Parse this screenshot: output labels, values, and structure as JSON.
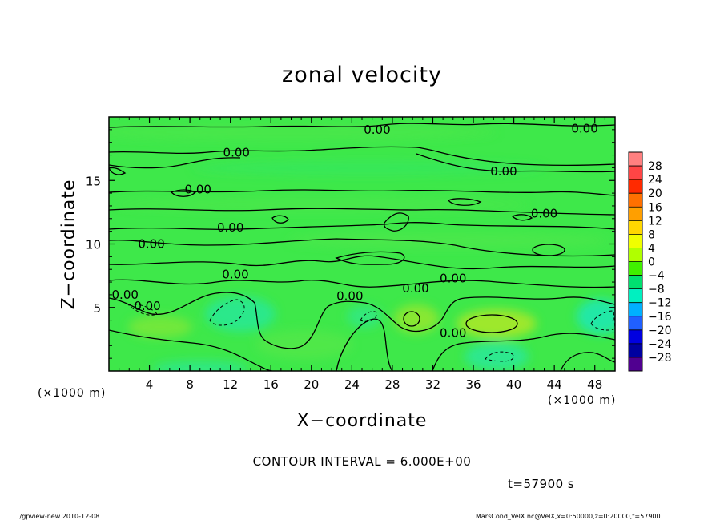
{
  "chart_data": {
    "type": "heatmap",
    "title": "zonal velocity",
    "xlabel": "X−coordinate",
    "ylabel": "Z−coordinate",
    "x_unit_label": "(×1000 m)",
    "xlim": [
      0,
      50
    ],
    "ylim": [
      0,
      20
    ],
    "x_ticks": [
      "4",
      "8",
      "12",
      "16",
      "20",
      "24",
      "28",
      "32",
      "36",
      "40",
      "44",
      "48"
    ],
    "x_tick_values": [
      4,
      8,
      12,
      16,
      20,
      24,
      28,
      32,
      36,
      40,
      44,
      48
    ],
    "y_ticks": [
      "5",
      "10",
      "15"
    ],
    "y_tick_values": [
      5,
      10,
      15
    ],
    "contour_labels": [
      {
        "text": "0.00",
        "x": 26.5,
        "z": 19.0
      },
      {
        "text": "0.00",
        "x": 47.0,
        "z": 19.1
      },
      {
        "text": "0.00",
        "x": 12.6,
        "z": 17.2
      },
      {
        "text": "0.00",
        "x": 39.0,
        "z": 15.7
      },
      {
        "text": "0.00",
        "x": 8.8,
        "z": 14.3
      },
      {
        "text": "0.00",
        "x": 43.0,
        "z": 12.4
      },
      {
        "text": "0.00",
        "x": 12.0,
        "z": 11.3
      },
      {
        "text": "0.00",
        "x": 4.2,
        "z": 10.0
      },
      {
        "text": "0.00",
        "x": 34.0,
        "z": 7.3
      },
      {
        "text": "0.00",
        "x": 12.5,
        "z": 7.6
      },
      {
        "text": "0.00",
        "x": 30.3,
        "z": 6.5
      },
      {
        "text": "0.00",
        "x": 23.8,
        "z": 5.9
      },
      {
        "text": "0.00",
        "x": 1.6,
        "z": 6.0
      },
      {
        "text": "0.00",
        "x": 3.8,
        "z": 5.1
      },
      {
        "text": "0.00",
        "x": 34.0,
        "z": 3.0
      }
    ],
    "colorbar": {
      "labels": [
        "28",
        "24",
        "20",
        "16",
        "12",
        "8",
        "4",
        "0",
        "−4",
        "−8",
        "−12",
        "−16",
        "−20",
        "−24",
        "−28"
      ],
      "colors": [
        "#ff8080",
        "#ff4545",
        "#ff2a00",
        "#ff7000",
        "#ff9f00",
        "#ffd700",
        "#f0ff00",
        "#b0ff00",
        "#40f000",
        "#00e070",
        "#00f0c0",
        "#00b0ff",
        "#2060ff",
        "#0000e0",
        "#0000a0",
        "#500090"
      ]
    },
    "contour_interval_text": "CONTOUR INTERVAL = 6.000E+00",
    "time_text": "t=57900  s",
    "grid": false,
    "legend": "right"
  },
  "footer": {
    "left": "./gpview-new   2010-12-08",
    "right": "MarsCond_VelX.nc@VelX,x=0:50000,z=0:20000,t=57900"
  },
  "colors": {
    "field_base": "#3ee84a",
    "positive_patch": "#9ae82a",
    "negative_patch": "#22e890",
    "contour_line": "#000000"
  }
}
